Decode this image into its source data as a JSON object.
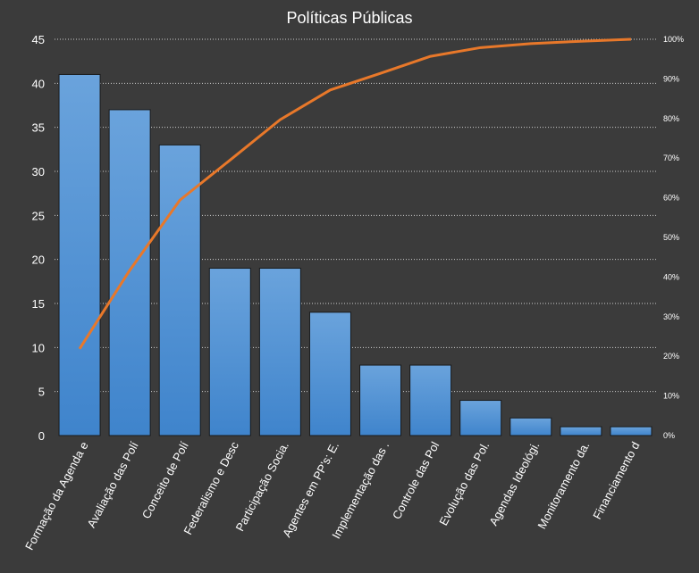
{
  "chart_data": {
    "type": "bar",
    "title": "Políticas Públicas",
    "categories": [
      "Formação da Agenda e",
      "Avaliação das Polí",
      "Conceito de Polí",
      "Federalismo e Desc",
      "Participação Socia.",
      "Agentes em PP's: E.",
      "Implementação das .",
      "Controle das Pol",
      "Evolução das Pol.",
      "Agendas Ideológi.",
      "Monitoramento da.",
      "Financiamento d"
    ],
    "values": [
      41,
      37,
      33,
      19,
      19,
      14,
      8,
      8,
      4,
      2,
      1,
      1
    ],
    "cumulative_percent": [
      21.9,
      41.7,
      59.4,
      69.5,
      79.7,
      87.2,
      91.4,
      95.7,
      97.9,
      98.9,
      99.5,
      100
    ],
    "ylim": [
      0,
      45
    ],
    "yticks": [
      "0",
      "5",
      "10",
      "15",
      "20",
      "25",
      "30",
      "35",
      "40",
      "45"
    ],
    "y2lim": [
      0,
      100
    ],
    "y2ticks": [
      "0%",
      "10%",
      "20%",
      "30%",
      "40%",
      "50%",
      "60%",
      "70%",
      "80%",
      "90%",
      "100%"
    ],
    "grid": true,
    "colors": {
      "background": "#3b3b3b",
      "bar_top": "#6aa3dc",
      "bar_bottom": "#3f84cc",
      "line": "#e8782a",
      "text": "#ffffff"
    }
  }
}
